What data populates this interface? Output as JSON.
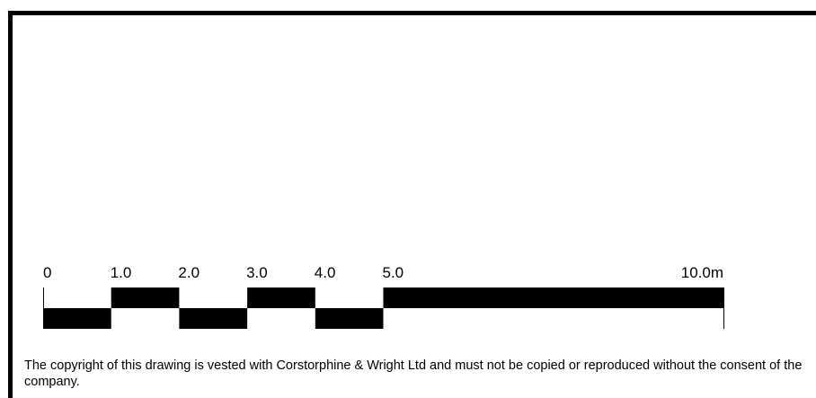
{
  "scale_bar": {
    "labels": [
      "0",
      "1.0",
      "2.0",
      "3.0",
      "4.0",
      "5.0",
      "10.0m"
    ],
    "ticks": [
      0,
      1,
      2,
      3,
      4,
      5,
      10
    ],
    "unit": "m",
    "alternating_segments": [
      {
        "from": 0,
        "to": 1,
        "row": "lower"
      },
      {
        "from": 1,
        "to": 2,
        "row": "upper"
      },
      {
        "from": 2,
        "to": 3,
        "row": "lower"
      },
      {
        "from": 3,
        "to": 4,
        "row": "upper"
      },
      {
        "from": 4,
        "to": 5,
        "row": "lower"
      },
      {
        "from": 5,
        "to": 10,
        "row": "upper"
      }
    ],
    "color": "#000000"
  },
  "copyright": {
    "text": "The copyright of this drawing is vested with Corstorphine & Wright Ltd and must not be copied or reproduced without the consent of the company."
  }
}
